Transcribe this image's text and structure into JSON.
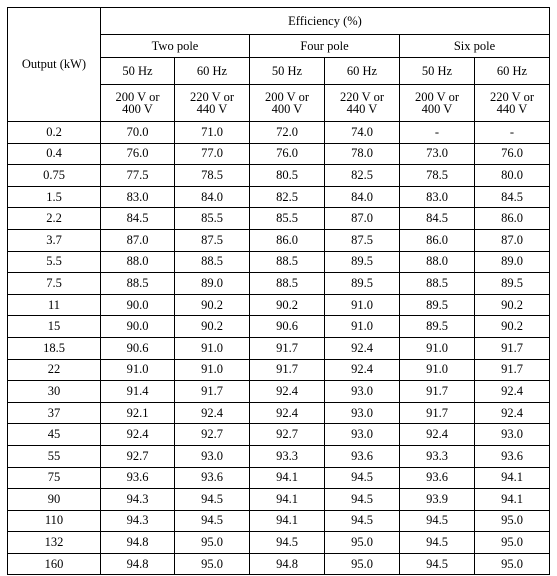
{
  "table": {
    "corner_label": "Output (kW)",
    "efficiency_label": "Efficiency (%)",
    "poles": [
      "Two pole",
      "Four pole",
      "Six pole"
    ],
    "frequencies": [
      "50 Hz",
      "60 Hz",
      "50 Hz",
      "60 Hz",
      "50 Hz",
      "60 Hz"
    ],
    "voltages": [
      [
        "200 V or",
        "400 V"
      ],
      [
        "220 V or",
        "440 V"
      ],
      [
        "200 V or",
        "400 V"
      ],
      [
        "220 V or",
        "440 V"
      ],
      [
        "200 V or",
        "400 V"
      ],
      [
        "220 V or",
        "440 V"
      ]
    ],
    "rows": [
      [
        "0.2",
        "70.0",
        "71.0",
        "72.0",
        "74.0",
        "-",
        "-"
      ],
      [
        "0.4",
        "76.0",
        "77.0",
        "76.0",
        "78.0",
        "73.0",
        "76.0"
      ],
      [
        "0.75",
        "77.5",
        "78.5",
        "80.5",
        "82.5",
        "78.5",
        "80.0"
      ],
      [
        "1.5",
        "83.0",
        "84.0",
        "82.5",
        "84.0",
        "83.0",
        "84.5"
      ],
      [
        "2.2",
        "84.5",
        "85.5",
        "85.5",
        "87.0",
        "84.5",
        "86.0"
      ],
      [
        "3.7",
        "87.0",
        "87.5",
        "86.0",
        "87.5",
        "86.0",
        "87.0"
      ],
      [
        "5.5",
        "88.0",
        "88.5",
        "88.5",
        "89.5",
        "88.0",
        "89.0"
      ],
      [
        "7.5",
        "88.5",
        "89.0",
        "88.5",
        "89.5",
        "88.5",
        "89.5"
      ],
      [
        "11",
        "90.0",
        "90.2",
        "90.2",
        "91.0",
        "89.5",
        "90.2"
      ],
      [
        "15",
        "90.0",
        "90.2",
        "90.6",
        "91.0",
        "89.5",
        "90.2"
      ],
      [
        "18.5",
        "90.6",
        "91.0",
        "91.7",
        "92.4",
        "91.0",
        "91.7"
      ],
      [
        "22",
        "91.0",
        "91.0",
        "91.7",
        "92.4",
        "91.0",
        "91.7"
      ],
      [
        "30",
        "91.4",
        "91.7",
        "92.4",
        "93.0",
        "91.7",
        "92.4"
      ],
      [
        "37",
        "92.1",
        "92.4",
        "92.4",
        "93.0",
        "91.7",
        "92.4"
      ],
      [
        "45",
        "92.4",
        "92.7",
        "92.7",
        "93.0",
        "92.4",
        "93.0"
      ],
      [
        "55",
        "92.7",
        "93.0",
        "93.3",
        "93.6",
        "93.3",
        "93.6"
      ],
      [
        "75",
        "93.6",
        "93.6",
        "94.1",
        "94.5",
        "93.6",
        "94.1"
      ],
      [
        "90",
        "94.3",
        "94.5",
        "94.1",
        "94.5",
        "93.9",
        "94.1"
      ],
      [
        "110",
        "94.3",
        "94.5",
        "94.1",
        "94.5",
        "94.5",
        "95.0"
      ],
      [
        "132",
        "94.8",
        "95.0",
        "94.5",
        "95.0",
        "94.5",
        "95.0"
      ],
      [
        "160",
        "94.8",
        "95.0",
        "94.8",
        "95.0",
        "94.5",
        "95.0"
      ]
    ]
  }
}
